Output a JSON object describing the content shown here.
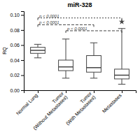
{
  "chart_data": {
    "type": "box",
    "title": "miR-328",
    "ylabel": "RQ",
    "categories": [
      "Normal Lung",
      "Tumor\n(Without Metastases)",
      "Tumor\n(With Metastases)",
      "Metastases"
    ],
    "boxes": [
      {
        "q1": 0.049,
        "median": 0.053,
        "q3": 0.057,
        "whislo": 0.043,
        "whishi": 0.061,
        "fliers": []
      },
      {
        "q1": 0.026,
        "median": 0.031,
        "q3": 0.04,
        "whislo": 0.016,
        "whishi": 0.068,
        "fliers": []
      },
      {
        "q1": 0.024,
        "median": 0.03,
        "q3": 0.046,
        "whislo": 0.016,
        "whishi": 0.063,
        "fliers": []
      },
      {
        "q1": 0.015,
        "median": 0.02,
        "q3": 0.028,
        "whislo": 0.008,
        "whishi": 0.082,
        "fliers": [
          0.091
        ]
      }
    ],
    "significance_lines": [
      {
        "x1": 1,
        "x2": 4,
        "y": 0.096,
        "label": "p < 0.0001",
        "line_style": "dotted"
      },
      {
        "x1": 1,
        "x2": 3,
        "y": 0.087,
        "label": "p < 0.0001",
        "line_style": "dashed"
      },
      {
        "x1": 2,
        "x2": 4,
        "y": 0.079,
        "label": "p < 0.0001",
        "line_style": "dashed"
      }
    ],
    "ylim": [
      0.0,
      0.105
    ],
    "yticks": [
      {
        "value": 0,
        "label": "0.00"
      },
      0.02,
      0.04,
      0.06,
      0.08,
      {
        "value": 0.1,
        "label": "0.10"
      }
    ],
    "color": "#444444",
    "marker": "star"
  }
}
